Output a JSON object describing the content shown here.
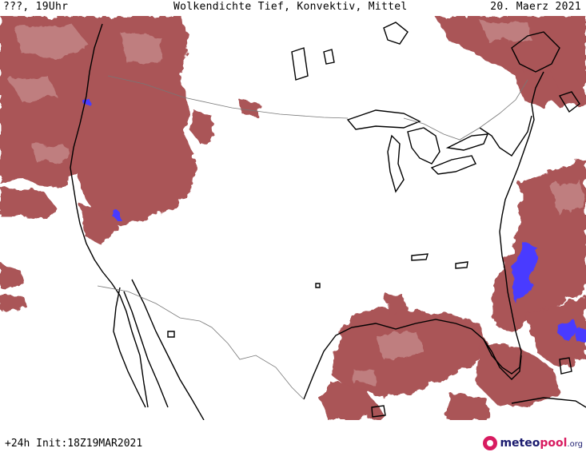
{
  "header": {
    "left": "???, 19Uhr",
    "center": "Wolkendichte  Tief, Konvektiv, Mittel",
    "right": "20. Maerz 2021"
  },
  "footer": {
    "run_info": "+24h  Init:18Z19MAR2021",
    "logo_meteo": "meteo",
    "logo_pool": "pool",
    "logo_tld": ".org"
  },
  "map": {
    "cloud_color": "#a3464a",
    "cloud_light": "#c99091",
    "precip_color": "#4a3bff",
    "coast_color": "#000000",
    "border_color": "#777777"
  }
}
